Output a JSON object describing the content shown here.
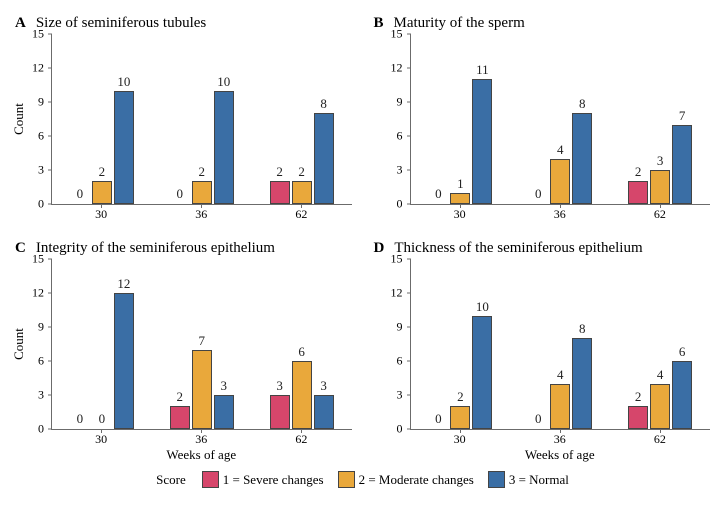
{
  "colors": {
    "severe": "#d6466b",
    "moderate": "#e9a83b",
    "normal": "#3a6ea5",
    "axis": "#6b6b6b",
    "background": "#ffffff"
  },
  "axis": {
    "y_ticks": [
      0,
      3,
      6,
      9,
      12,
      15
    ],
    "y_max": 15,
    "y_label": "Count",
    "x_label": "Weeks of age"
  },
  "categories": [
    "30",
    "36",
    "62"
  ],
  "legend": {
    "title": "Score",
    "items": [
      {
        "key": "severe",
        "label": "1 = Severe changes"
      },
      {
        "key": "moderate",
        "label": "2 = Moderate changes"
      },
      {
        "key": "normal",
        "label": "3 = Normal"
      }
    ]
  },
  "panels": [
    {
      "letter": "A",
      "title": "Size of seminiferous tubules",
      "show_y_label": true,
      "show_x_label": false,
      "groups": [
        {
          "severe": 0,
          "moderate": 2,
          "normal": 10
        },
        {
          "severe": 0,
          "moderate": 2,
          "normal": 10
        },
        {
          "severe": 2,
          "moderate": 2,
          "normal": 8
        }
      ]
    },
    {
      "letter": "B",
      "title": "Maturity of the sperm",
      "show_y_label": false,
      "show_x_label": false,
      "groups": [
        {
          "severe": 0,
          "moderate": 1,
          "normal": 11
        },
        {
          "severe": 0,
          "moderate": 4,
          "normal": 8
        },
        {
          "severe": 2,
          "moderate": 3,
          "normal": 7
        }
      ]
    },
    {
      "letter": "C",
      "title": "Integrity of the seminiferous epithelium",
      "show_y_label": true,
      "show_x_label": true,
      "groups": [
        {
          "severe": 0,
          "moderate": 0,
          "normal": 12
        },
        {
          "severe": 2,
          "moderate": 7,
          "normal": 3
        },
        {
          "severe": 3,
          "moderate": 6,
          "normal": 3
        }
      ]
    },
    {
      "letter": "D",
      "title": "Thickness of the seminiferous epithelium",
      "show_y_label": false,
      "show_x_label": true,
      "groups": [
        {
          "severe": 0,
          "moderate": 2,
          "normal": 10
        },
        {
          "severe": 0,
          "moderate": 4,
          "normal": 8
        },
        {
          "severe": 2,
          "moderate": 4,
          "normal": 6
        }
      ]
    }
  ]
}
